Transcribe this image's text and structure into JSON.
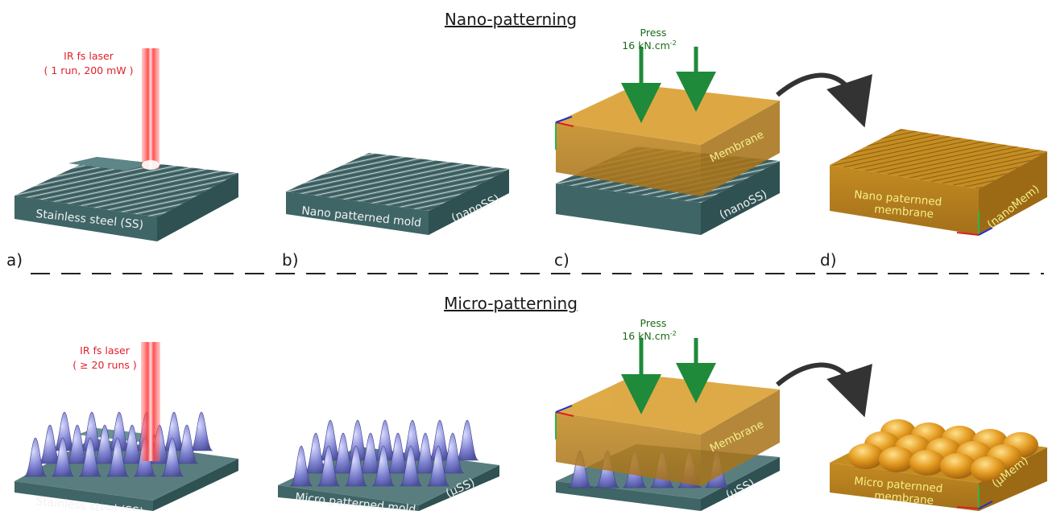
{
  "titles": {
    "nano": "Nano-patterning",
    "micro": "Micro-patterning"
  },
  "panels": {
    "a": "a)",
    "b": "b)",
    "c": "c)",
    "d": "d)"
  },
  "laser": {
    "name": "IR fs laser",
    "nano_params": "( 1 run, 200 mW )",
    "micro_params": "( ≥ 20 runs )",
    "color": "#e0202a"
  },
  "press": {
    "label": "Press",
    "force": "16 kN.cm",
    "force_exp": "-2",
    "color": "#1b6b1b"
  },
  "labels": {
    "stainless_steel": "Stainless steel (SS)",
    "nano_mold": "Nano patterned mold",
    "nano_ss": "(nanoSS)",
    "membrane": "Membrane",
    "nano_membrane_line1": "Nano paternned",
    "nano_membrane_line2": "membrane",
    "nano_mem": "(nanoMem)",
    "micro_mold": "Micro patterned mold",
    "micro_ss": "(µSS)",
    "micro_membrane_line1": "Micro paternned",
    "micro_membrane_line2": "membrane",
    "micro_mem": "(µMem)"
  },
  "colors": {
    "steel_top": "#5a7e80",
    "steel_front": "#3f6566",
    "steel_side": "#2f5152",
    "membrane": "#c98f1e",
    "peak": "#6f72c2",
    "arrow_green": "#1f8a3a"
  }
}
